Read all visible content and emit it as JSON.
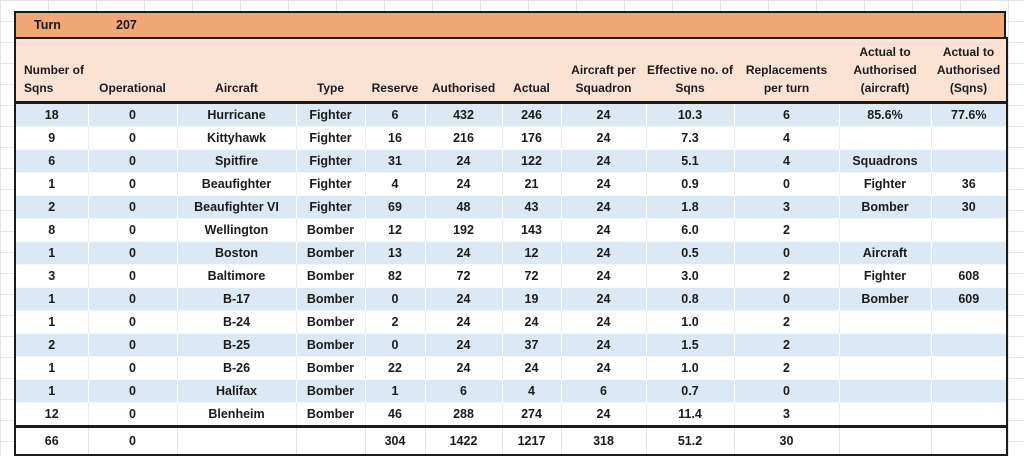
{
  "turn": {
    "label": "Turn",
    "value": "207"
  },
  "table": {
    "columns": [
      "Number of Sqns",
      "Operational",
      "Aircraft",
      "Type",
      "Reserve",
      "Authorised",
      "Actual",
      "Aircraft per Squadron",
      "Effective no. of Sqns",
      "Replacements per turn",
      "Actual to Authorised (aircraft)",
      "Actual to Authorised (Sqns)"
    ],
    "rows": [
      [
        "18",
        "0",
        "Hurricane",
        "Fighter",
        "6",
        "432",
        "246",
        "24",
        "10.3",
        "6",
        "85.6%",
        "77.6%"
      ],
      [
        "9",
        "0",
        "Kittyhawk",
        "Fighter",
        "16",
        "216",
        "176",
        "24",
        "7.3",
        "4",
        "",
        ""
      ],
      [
        "6",
        "0",
        "Spitfire",
        "Fighter",
        "31",
        "24",
        "122",
        "24",
        "5.1",
        "4",
        "Squadrons",
        ""
      ],
      [
        "1",
        "0",
        "Beaufighter",
        "Fighter",
        "4",
        "24",
        "21",
        "24",
        "0.9",
        "0",
        "Fighter",
        "36"
      ],
      [
        "2",
        "0",
        "Beaufighter VI",
        "Fighter",
        "69",
        "48",
        "43",
        "24",
        "1.8",
        "3",
        "Bomber",
        "30"
      ],
      [
        "8",
        "0",
        "Wellington",
        "Bomber",
        "12",
        "192",
        "143",
        "24",
        "6.0",
        "2",
        "",
        ""
      ],
      [
        "1",
        "0",
        "Boston",
        "Bomber",
        "13",
        "24",
        "12",
        "24",
        "0.5",
        "0",
        "Aircraft",
        ""
      ],
      [
        "3",
        "0",
        "Baltimore",
        "Bomber",
        "82",
        "72",
        "72",
        "24",
        "3.0",
        "2",
        "Fighter",
        "608"
      ],
      [
        "1",
        "0",
        "B-17",
        "Bomber",
        "0",
        "24",
        "19",
        "24",
        "0.8",
        "0",
        "Bomber",
        "609"
      ],
      [
        "1",
        "0",
        "B-24",
        "Bomber",
        "2",
        "24",
        "24",
        "24",
        "1.0",
        "2",
        "",
        ""
      ],
      [
        "2",
        "0",
        "B-25",
        "Bomber",
        "0",
        "24",
        "37",
        "24",
        "1.5",
        "2",
        "",
        ""
      ],
      [
        "1",
        "0",
        "B-26",
        "Bomber",
        "22",
        "24",
        "24",
        "24",
        "1.0",
        "2",
        "",
        ""
      ],
      [
        "1",
        "0",
        "Halifax",
        "Bomber",
        "1",
        "6",
        "4",
        "6",
        "0.7",
        "0",
        "",
        ""
      ],
      [
        "12",
        "0",
        "Blenheim",
        "Bomber",
        "46",
        "288",
        "274",
        "24",
        "11.4",
        "3",
        "",
        ""
      ]
    ],
    "totals": [
      "66",
      "0",
      "",
      "",
      "304",
      "1422",
      "1217",
      "318",
      "51.2",
      "30",
      "",
      ""
    ]
  },
  "colors": {
    "orange": "#F2A876",
    "peach": "#FBE2D3",
    "blue": "#DCE9F4",
    "border": "#1A1A1A"
  }
}
